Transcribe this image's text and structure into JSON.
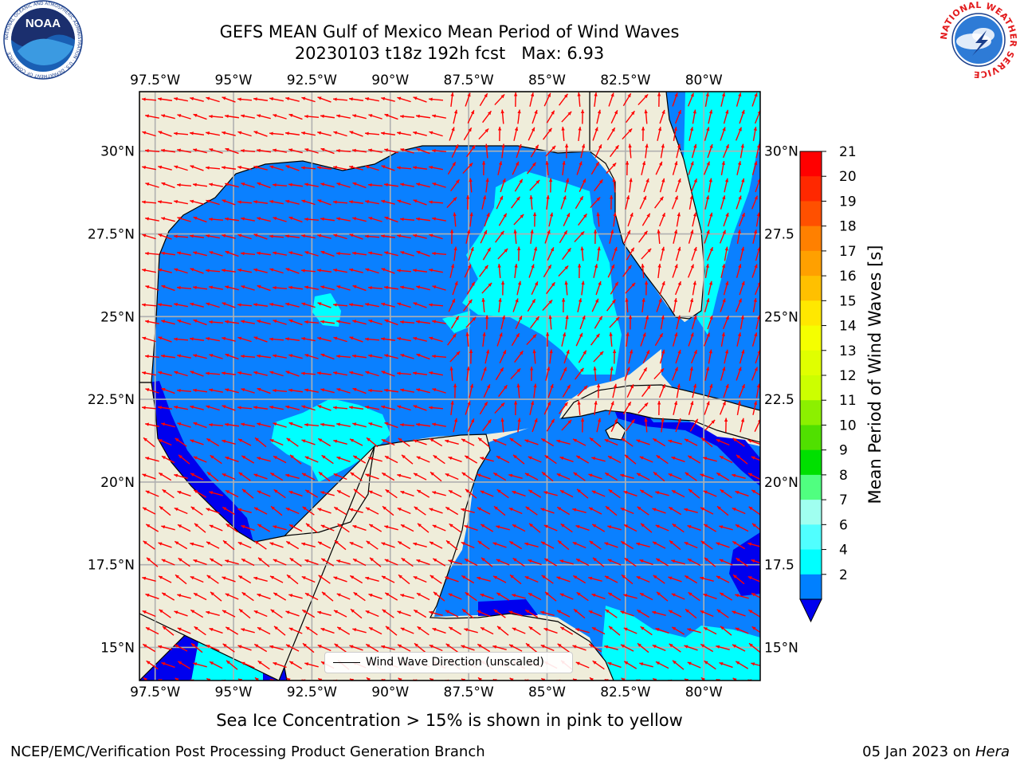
{
  "title": {
    "line1": "GEFS MEAN Gulf of Mexico Mean Period of Wind Waves",
    "line2_date": "20230103 t18z 192h fcst",
    "line2_max": "Max: 6.93"
  },
  "logos": {
    "left": {
      "name": "noaa-logo",
      "text": "NOAA",
      "ring_text": "NATIONAL OCEANIC AND ATMOSPHERIC ADMINISTRATION · U.S. DEPARTMENT OF COMMERCE"
    },
    "right": {
      "name": "nws-logo",
      "ring_text": "NATIONAL WEATHER SERVICE"
    }
  },
  "map": {
    "lon_ticks": [
      "97.5°W",
      "95°W",
      "92.5°W",
      "90°W",
      "87.5°W",
      "85°W",
      "82.5°W",
      "80°W"
    ],
    "lon_values": [
      -97.5,
      -95,
      -92.5,
      -90,
      -87.5,
      -85,
      -82.5,
      -80
    ],
    "lat_ticks_left": [
      "30°N",
      "27.5°N",
      "25°N",
      "22.5°N",
      "20°N",
      "17.5°N",
      "15°N"
    ],
    "lat_ticks_right": [
      "30°N",
      "27.5",
      "25°N",
      "22.5",
      "20°N",
      "17.5",
      "15°N"
    ],
    "lat_values": [
      30,
      27.5,
      25,
      22.5,
      20,
      17.5,
      15
    ],
    "extent": {
      "lon_min": -98,
      "lon_max": -78.2,
      "lat_min": 14,
      "lat_max": 31.8
    },
    "colors": {
      "land": "#efedda",
      "coast": "#000000",
      "grid": "#b0b0b0",
      "period_2_4": "#0a80ff",
      "period_4_6": "#00ffff",
      "below_2": "#0000ee",
      "arrows": "#ff0000"
    },
    "legend_label": "Wind Wave Direction (unscaled)"
  },
  "colorbar": {
    "label": "Mean Period of Wind Waves [s]",
    "ticks": [
      "21",
      "20",
      "19",
      "18",
      "17",
      "16",
      "15",
      "14",
      "13",
      "12",
      "11",
      "10",
      "9",
      "8",
      "7",
      "6",
      "4",
      "2"
    ],
    "colors": [
      "#ff0000",
      "#ff2800",
      "#ff5000",
      "#ff8000",
      "#ffa000",
      "#ffc000",
      "#ffe800",
      "#f5ff00",
      "#e0ff00",
      "#ccff00",
      "#8cf000",
      "#50e000",
      "#00e000",
      "#50ff80",
      "#a0fff0",
      "#50ffff",
      "#00ffff",
      "#0080ff"
    ],
    "extend_color": "#0000ee"
  },
  "footer": {
    "note": "Sea Ice Concentration > 15% is shown in pink to yellow",
    "left": "NCEP/EMC/Verification Post Processing Product Generation Branch",
    "right_date": "05 Jan 2023 on",
    "right_host": "Hera"
  }
}
